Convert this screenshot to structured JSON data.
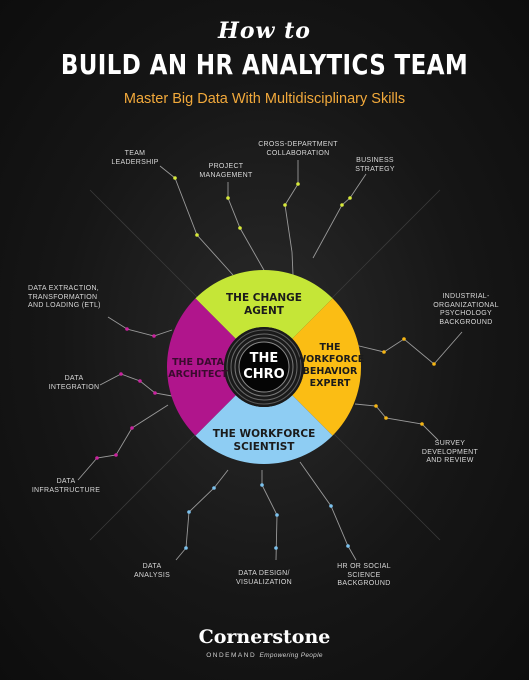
{
  "header": {
    "script_title": "How to",
    "title": "BUILD AN HR ANALYTICS TEAM",
    "subtitle": "Master Big Data With Multidisciplinary Skills"
  },
  "center": {
    "label": "THE CHRO"
  },
  "segments": {
    "top": {
      "line1": "THE CHANGE",
      "line2": "AGENT",
      "color": "#c5e637"
    },
    "right": {
      "line1": "THE",
      "line2": "WORKFORCE",
      "line3": "BEHAVIOR",
      "line4": "EXPERT",
      "color": "#fbbd14"
    },
    "bottom": {
      "line1": "THE WORKFORCE",
      "line2": "SCIENTIST",
      "color": "#8ecdf3"
    },
    "left": {
      "line1": "THE DATA",
      "line2": "ARCHITECT",
      "color": "#b0158c"
    }
  },
  "labels": {
    "team_leadership": [
      "TEAM",
      "LEADERSHIP"
    ],
    "project_management": [
      "PROJECT",
      "MANAGEMENT"
    ],
    "cross_department": [
      "CROSS-DEPARTMENT",
      "COLLABORATION"
    ],
    "business_strategy": [
      "BUSINESS",
      "STRATEGY"
    ],
    "io_psychology": [
      "INDUSTRIAL-",
      "ORGANIZATIONAL",
      "PSYCHOLOGY",
      "BACKGROUND"
    ],
    "survey": [
      "SURVEY",
      "DEVELOPMENT",
      "AND REVIEW"
    ],
    "hr_social": [
      "HR OR SOCIAL",
      "SCIENCE BACKGROUND"
    ],
    "data_design": [
      "DATA DESIGN/",
      "VISUALIZATION"
    ],
    "data_analysis": [
      "DATA",
      "ANALYSIS"
    ],
    "data_infrastructure": [
      "DATA",
      "INFRASTRUCTURE"
    ],
    "data_integration": [
      "DATA",
      "INTEGRATION"
    ],
    "data_etl": [
      "DATA EXTRACTION,",
      "TRANSFORMATION",
      "AND LOADING (ETL)"
    ]
  },
  "footer": {
    "brand": "Cornerstone",
    "sub": "ONDEMAND",
    "tagline": "Empowering People"
  }
}
